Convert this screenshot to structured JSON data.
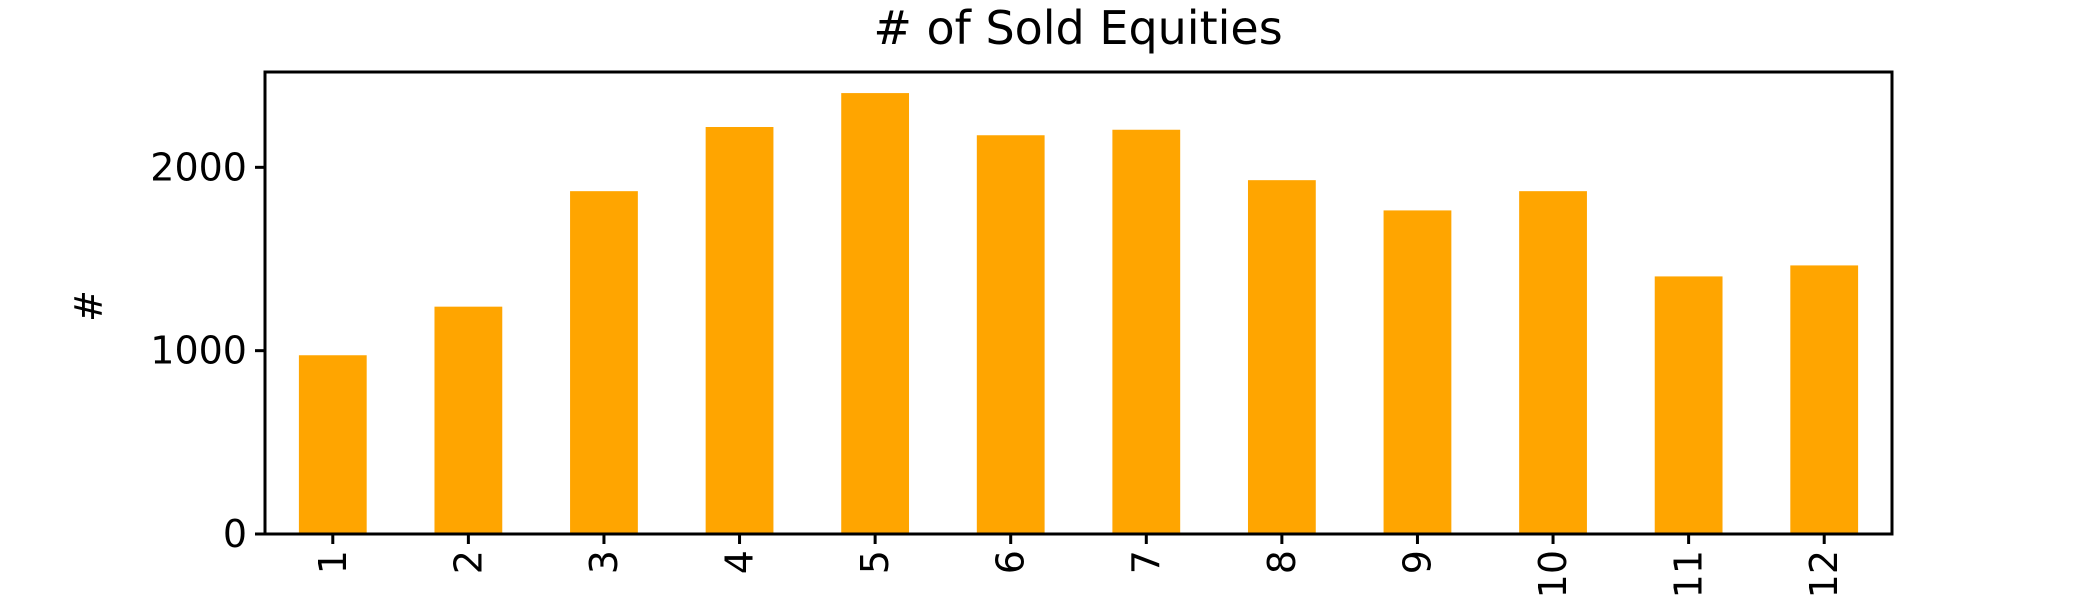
{
  "chart_data": {
    "type": "bar",
    "title": "# of Sold Equities",
    "xlabel": "",
    "ylabel": "#",
    "categories": [
      "1",
      "2",
      "3",
      "4",
      "5",
      "6",
      "7",
      "8",
      "9",
      "10",
      "11",
      "12"
    ],
    "values": [
      975,
      1240,
      1870,
      2220,
      2405,
      2175,
      2205,
      1930,
      1765,
      1870,
      1405,
      1465
    ],
    "ylim": [
      0,
      2520
    ],
    "yticks": [
      {
        "value": 0,
        "label": "0"
      },
      {
        "value": 1000,
        "label": "1000"
      },
      {
        "value": 2000,
        "label": "2000"
      }
    ],
    "grid": false,
    "bar_color": "#FFA500"
  }
}
